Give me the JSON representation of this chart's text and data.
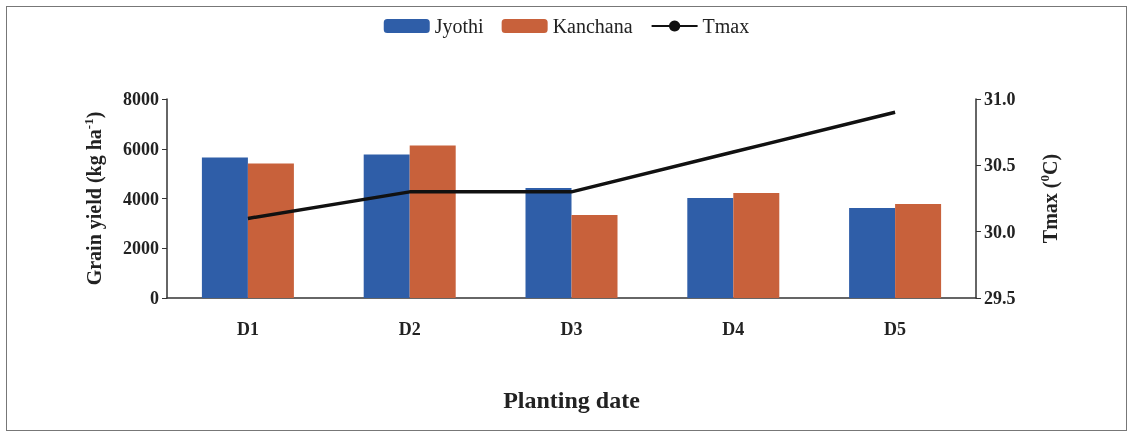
{
  "chart_data": {
    "type": "bar",
    "xlabel": "Planting date",
    "ylabel": "Grain yield (kg ha$^{-1}$)",
    "y2label": "Tmax ($^{0}$C)",
    "categories": [
      "D1",
      "D2",
      "D3",
      "D4",
      "D5"
    ],
    "series": [
      {
        "name": "Jyothi",
        "color": "#2f5ea8",
        "values": [
          5650,
          5770,
          4420,
          4020,
          3620
        ]
      },
      {
        "name": "Kanchana",
        "color": "#c8613b",
        "values": [
          5410,
          6130,
          3340,
          4220,
          3780
        ]
      },
      {
        "name": "Tmax",
        "type": "line",
        "axis": "y2",
        "color": "#111111",
        "values": [
          30.1,
          30.3,
          30.3,
          30.6,
          30.9
        ]
      }
    ],
    "ylim": [
      0,
      8000
    ],
    "yticks": [
      0,
      2000,
      4000,
      6000,
      8000
    ],
    "y2lim": [
      29.5,
      31.0
    ],
    "y2ticks": [
      {
        "value": 29.5,
        "label": "29.5"
      },
      {
        "value": 30.0,
        "label": "30.0"
      },
      {
        "value": 30.5,
        "label": "30.5"
      },
      {
        "value": 31.0,
        "label": "31.0"
      }
    ],
    "grid": false,
    "legend": "top",
    "marker": "none",
    "line_style": "solid"
  }
}
